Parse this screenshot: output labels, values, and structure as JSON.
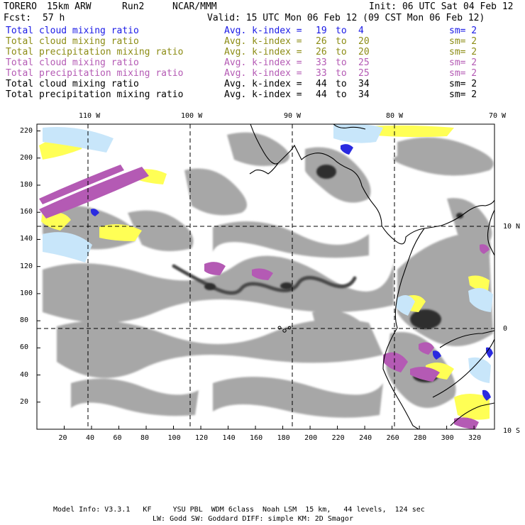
{
  "header": {
    "model": "TORERO",
    "resolution": "15km ARW",
    "run": "Run2",
    "org": "NCAR/MMM",
    "init": "Init: 06 UTC Sat 04 Feb 12",
    "fcst_label": "Fcst:",
    "fcst_value": "57 h",
    "valid": "Valid: 15 UTC Mon 06 Feb 12 (09 CST Mon 06 Feb 12)"
  },
  "legend": [
    {
      "field": "Total cloud mixing ratio",
      "kindex": "Avg. k-index =",
      "from": "19",
      "to_word": "to",
      "to": "4",
      "sm": "sm= 2",
      "color": "#1a1ae6"
    },
    {
      "field": "Total cloud mixing ratio",
      "kindex": "Avg. k-index =",
      "from": "26",
      "to_word": "to",
      "to": "20",
      "sm": "sm= 2",
      "color": "#8c8c14"
    },
    {
      "field": "Total precipitation mixing ratio",
      "kindex": "Avg. k-index =",
      "from": "26",
      "to_word": "to",
      "to": "20",
      "sm": "sm= 2",
      "color": "#8c8c14"
    },
    {
      "field": "Total cloud mixing ratio",
      "kindex": "Avg. k-index =",
      "from": "33",
      "to_word": "to",
      "to": "25",
      "sm": "sm= 2",
      "color": "#b45ab4"
    },
    {
      "field": "Total precipitation mixing ratio",
      "kindex": "Avg. k-index =",
      "from": "33",
      "to_word": "to",
      "to": "25",
      "sm": "sm= 2",
      "color": "#b45ab4"
    },
    {
      "field": "Total cloud mixing ratio",
      "kindex": "Avg. k-index =",
      "from": "44",
      "to_word": "to",
      "to": "34",
      "sm": "sm= 2",
      "color": "#000000"
    },
    {
      "field": "Total precipitation mixing ratio",
      "kindex": "Avg. k-index =",
      "from": "44",
      "to_word": "to",
      "to": "34",
      "sm": "sm= 2",
      "color": "#000000"
    }
  ],
  "axes": {
    "x_ticks": [
      "20",
      "40",
      "60",
      "80",
      "100",
      "120",
      "140",
      "160",
      "180",
      "200",
      "220",
      "240",
      "260",
      "280",
      "300",
      "320"
    ],
    "y_ticks": [
      "20",
      "40",
      "60",
      "80",
      "100",
      "120",
      "140",
      "160",
      "180",
      "200",
      "220"
    ],
    "lon_labels": [
      "110 W",
      "100 W",
      "90 W",
      "80 W",
      "70 W"
    ],
    "lat_labels": [
      "10 N",
      "0",
      "10 S"
    ]
  },
  "footer": {
    "line1": "Model Info: V3.3.1   KF     YSU PBL  WDM 6class  Noah LSM  15 km,   44 levels,  124 sec",
    "line2": "LW: Godd SW: Goddard DIFF: simple KM: 2D Smagor"
  },
  "colors": {
    "gray": "#a0a0a0",
    "dark": "#3c3c3c",
    "yellow": "#ffff50",
    "lightblue": "#c8e6fa",
    "blue": "#2828dc",
    "purple": "#b45ab4"
  }
}
